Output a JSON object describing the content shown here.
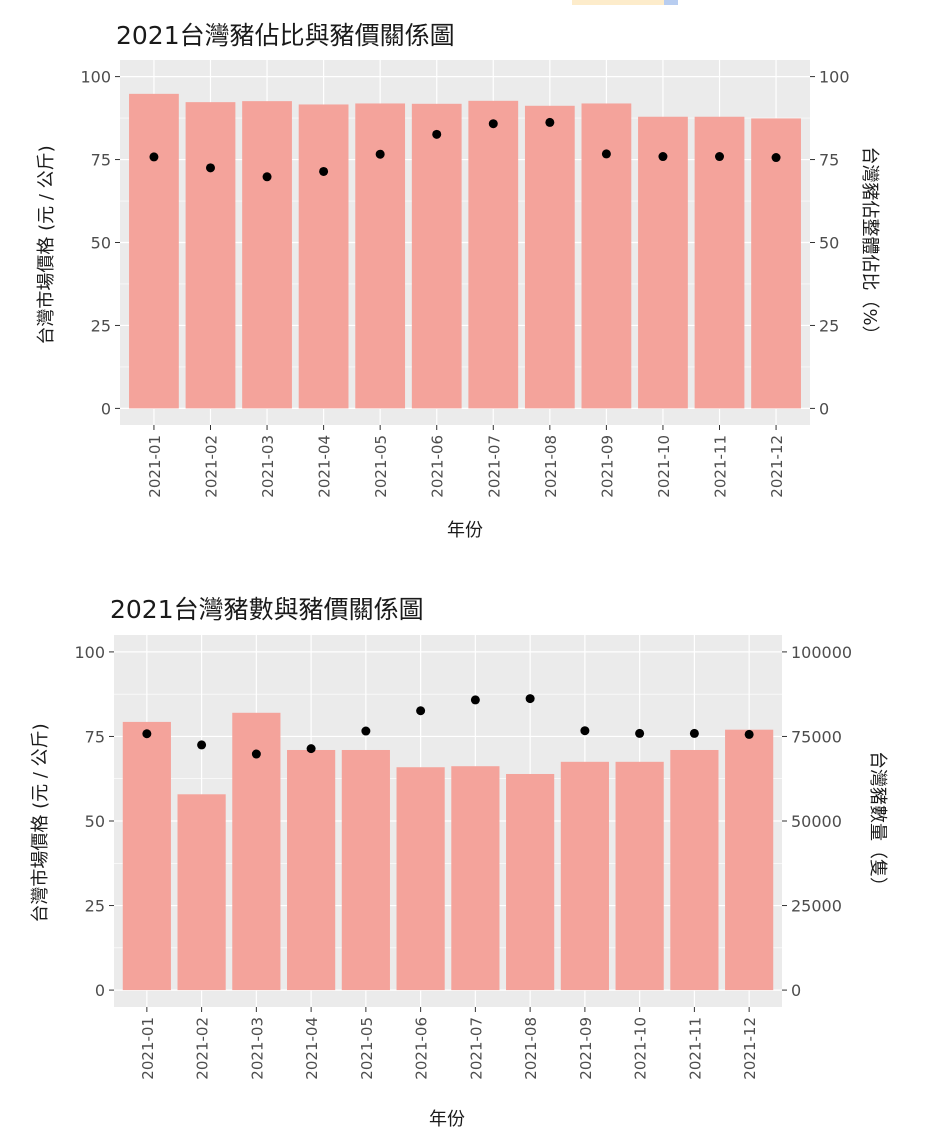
{
  "chart_data": [
    {
      "type": "bar",
      "title": "2021台灣豬佔比與豬價關係圖",
      "xlabel": "年份",
      "ylabel": "台灣市場價格 (元 / 公斤)",
      "ylabel_right": "台灣豬佔整體佔比（%）",
      "categories": [
        "2021-01",
        "2021-02",
        "2021-03",
        "2021-04",
        "2021-05",
        "2021-06",
        "2021-07",
        "2021-08",
        "2021-09",
        "2021-10",
        "2021-11",
        "2021-12"
      ],
      "ylim": [
        0,
        100
      ],
      "yticks": [
        "0",
        "25",
        "50",
        "75",
        "100"
      ],
      "y2lim": [
        0,
        100
      ],
      "y2ticks": [
        "0",
        "25",
        "50",
        "75",
        "100"
      ],
      "bar_values": [
        94.8,
        92.3,
        92.6,
        91.6,
        91.9,
        91.8,
        92.7,
        91.2,
        91.9,
        87.9,
        87.9,
        87.4
      ],
      "point_values": [
        75.8,
        72.5,
        69.8,
        71.4,
        76.6,
        82.6,
        85.8,
        86.2,
        76.7,
        75.9,
        75.9,
        75.6
      ],
      "grid": true,
      "colors": {
        "bar": "#f4a39b",
        "point": "#000000",
        "panel": "#ebebeb",
        "gridline": "#ffffff"
      }
    },
    {
      "type": "bar",
      "title": "2021台灣豬數與豬價關係圖",
      "xlabel": "年份",
      "ylabel": "台灣市場價格 (元 / 公斤)",
      "ylabel_right": "台灣豬數量（隻）",
      "categories": [
        "2021-01",
        "2021-02",
        "2021-03",
        "2021-04",
        "2021-05",
        "2021-06",
        "2021-07",
        "2021-08",
        "2021-09",
        "2021-10",
        "2021-11",
        "2021-12"
      ],
      "ylim": [
        0,
        100
      ],
      "yticks": [
        "0",
        "25",
        "50",
        "75",
        "100"
      ],
      "y2lim": [
        0,
        100000
      ],
      "y2ticks": [
        "0",
        "25000",
        "50000",
        "75000",
        "100000"
      ],
      "bar_values": [
        79.3,
        57.9,
        82.0,
        71.0,
        71.0,
        65.9,
        66.2,
        63.9,
        67.5,
        67.5,
        71.0,
        77.0
      ],
      "point_values": [
        75.8,
        72.5,
        69.8,
        71.4,
        76.6,
        82.6,
        85.8,
        86.2,
        76.7,
        75.9,
        75.9,
        75.6
      ],
      "grid": true,
      "colors": {
        "bar": "#f4a39b",
        "point": "#000000",
        "panel": "#ebebeb",
        "gridline": "#ffffff"
      }
    }
  ]
}
